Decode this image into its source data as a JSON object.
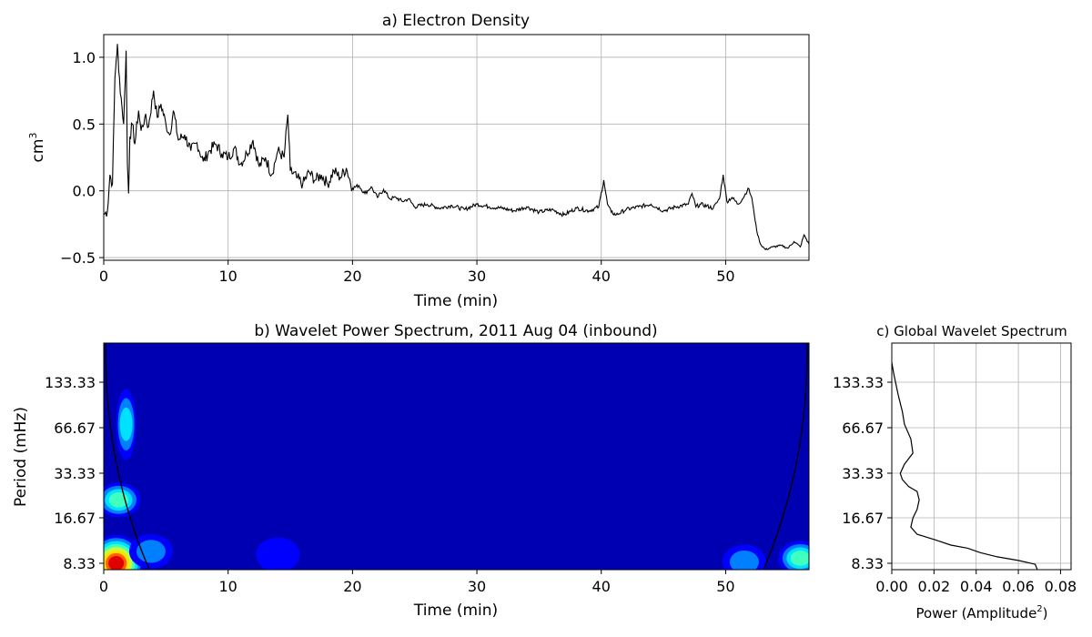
{
  "chart_data": [
    {
      "type": "line",
      "title": "a) Electron Density",
      "xlabel": "Time (min)",
      "ylabel": "cm",
      "ylabel_sup": "3",
      "xlim": [
        0,
        56.7
      ],
      "ylim": [
        -0.52,
        1.17
      ],
      "xticks": [
        "0",
        "10",
        "20",
        "30",
        "40",
        "50"
      ],
      "yticks": [
        "−0.5",
        "0.0",
        "0.5",
        "1.0"
      ],
      "grid": true,
      "series": [
        {
          "color": "#000000",
          "x": [
            0,
            0.3,
            0.5,
            0.7,
            0.9,
            1.0,
            1.1,
            1.2,
            1.4,
            1.6,
            1.8,
            1.9,
            2.0,
            2.1,
            2.3,
            2.5,
            2.8,
            3.0,
            3.3,
            3.6,
            4.0,
            4.3,
            4.6,
            5.0,
            5.3,
            5.6,
            6.0,
            6.5,
            7.0,
            7.5,
            8.0,
            8.5,
            9.0,
            9.5,
            10.0,
            10.5,
            11.0,
            11.5,
            12.0,
            12.5,
            13.0,
            13.5,
            14.0,
            14.5,
            14.8,
            15.0,
            15.5,
            16.0,
            16.5,
            17.0,
            17.5,
            18.0,
            18.5,
            19.0,
            19.5,
            20.0,
            20.5,
            21.0,
            21.5,
            22.0,
            22.5,
            23.0,
            23.5,
            24.0,
            24.5,
            25.0,
            26.0,
            27.0,
            28.0,
            29.0,
            30.0,
            31.0,
            32.0,
            33.0,
            34.0,
            35.0,
            36.0,
            37.0,
            38.0,
            39.0,
            39.8,
            40.2,
            40.5,
            40.8,
            41.2,
            42.0,
            43.0,
            44.0,
            45.0,
            46.0,
            47.0,
            47.3,
            47.6,
            48.0,
            49.0,
            49.5,
            49.8,
            50.1,
            50.5,
            51.0,
            51.5,
            51.8,
            52.1,
            52.5,
            52.8,
            53.2,
            53.8,
            54.5,
            55.0,
            55.5,
            56.0,
            56.3,
            56.7
          ],
          "y": [
            -0.18,
            -0.15,
            0.12,
            0.05,
            0.85,
            0.98,
            1.1,
            0.9,
            0.7,
            0.5,
            1.05,
            0.2,
            -0.02,
            0.4,
            0.5,
            0.35,
            0.6,
            0.45,
            0.55,
            0.48,
            0.75,
            0.55,
            0.65,
            0.5,
            0.42,
            0.6,
            0.38,
            0.42,
            0.3,
            0.36,
            0.22,
            0.3,
            0.35,
            0.28,
            0.25,
            0.32,
            0.2,
            0.28,
            0.38,
            0.18,
            0.25,
            0.12,
            0.3,
            0.25,
            0.57,
            0.15,
            0.1,
            0.05,
            0.14,
            0.08,
            0.12,
            0.05,
            0.15,
            0.1,
            0.17,
            0.02,
            0.04,
            -0.02,
            0.03,
            -0.05,
            0.01,
            -0.06,
            -0.05,
            -0.08,
            -0.06,
            -0.12,
            -0.1,
            -0.13,
            -0.11,
            -0.14,
            -0.1,
            -0.12,
            -0.13,
            -0.15,
            -0.12,
            -0.16,
            -0.14,
            -0.18,
            -0.13,
            -0.15,
            -0.12,
            0.08,
            -0.1,
            -0.16,
            -0.18,
            -0.14,
            -0.12,
            -0.1,
            -0.15,
            -0.12,
            -0.1,
            -0.02,
            -0.12,
            -0.1,
            -0.13,
            -0.06,
            0.12,
            -0.08,
            -0.05,
            -0.1,
            -0.04,
            0.02,
            -0.05,
            -0.3,
            -0.4,
            -0.44,
            -0.42,
            -0.41,
            -0.43,
            -0.38,
            -0.42,
            -0.33,
            -0.4
          ]
        }
      ]
    },
    {
      "type": "heatmap",
      "title": "b) Wavelet Power Spectrum, 2011 Aug 04 (inbound)",
      "xlabel": "Time (min)",
      "ylabel": "Period (mHz)",
      "xlim": [
        0,
        56.7
      ],
      "ylim_log2": [
        7.2,
        2.6
      ],
      "xticks": [
        "0",
        "10",
        "20",
        "30",
        "40",
        "50"
      ],
      "yticks": [
        "133.33",
        "66.67",
        "33.33",
        "16.67",
        "8.33"
      ],
      "colormap": "jet",
      "background_color": "#0000b3",
      "features": [
        {
          "t": 1.0,
          "p": 8.33,
          "level": 1.0
        },
        {
          "t": 1.2,
          "p": 22,
          "level": 0.45
        },
        {
          "t": 1.8,
          "p": 70,
          "level": 0.4
        },
        {
          "t": 3.8,
          "p": 10,
          "level": 0.2
        },
        {
          "t": 14.0,
          "p": 9.5,
          "level": 0.15
        },
        {
          "t": 51.5,
          "p": 8.5,
          "level": 0.2
        },
        {
          "t": 56.0,
          "p": 9.0,
          "level": 0.45
        }
      ],
      "coi_color": "#000000"
    },
    {
      "type": "line",
      "title": "c) Global Wavelet Spectrum",
      "xlabel": "Power (Amplitude",
      "xlabel_sup": "2",
      "xlabel_end": ")",
      "xlim": [
        0,
        0.085
      ],
      "xticks": [
        "0.00",
        "0.02",
        "0.04",
        "0.06",
        "0.08"
      ],
      "yticks": [
        "133.33",
        "66.67",
        "33.33",
        "16.67",
        "8.33"
      ],
      "grid": true,
      "series": [
        {
          "color": "#000000",
          "power": [
            0.0,
            0.001,
            0.003,
            0.005,
            0.006,
            0.009,
            0.01,
            0.006,
            0.004,
            0.005,
            0.008,
            0.012,
            0.013,
            0.012,
            0.01,
            0.009,
            0.012,
            0.02,
            0.028,
            0.036,
            0.042,
            0.05,
            0.06,
            0.068
          ],
          "period_mHz": [
            180,
            150,
            110,
            85,
            70,
            56,
            45,
            38,
            33,
            30,
            27,
            25,
            22,
            19,
            16.67,
            14.5,
            13,
            12,
            11,
            10.5,
            9.8,
            9.2,
            8.7,
            8.2
          ]
        }
      ]
    }
  ]
}
